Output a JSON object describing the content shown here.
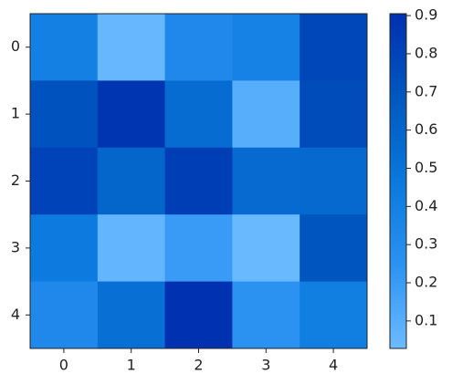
{
  "chart_data": {
    "type": "heatmap",
    "x_categories": [
      "0",
      "1",
      "2",
      "3",
      "4"
    ],
    "y_categories": [
      "0",
      "1",
      "2",
      "3",
      "4"
    ],
    "values": [
      [
        0.4,
        0.05,
        0.33,
        0.38,
        0.78
      ],
      [
        0.72,
        0.88,
        0.55,
        0.1,
        0.75
      ],
      [
        0.8,
        0.6,
        0.83,
        0.56,
        0.57
      ],
      [
        0.45,
        0.06,
        0.2,
        0.04,
        0.7
      ],
      [
        0.33,
        0.52,
        0.9,
        0.25,
        0.42
      ]
    ],
    "colormap": [
      "#6dbbff",
      "#2b92f2",
      "#0a78dc",
      "#0058c0",
      "#0030b0"
    ],
    "vlim": [
      0.028,
      0.905
    ],
    "colorbar_ticks": [
      0.1,
      0.2,
      0.3,
      0.4,
      0.5,
      0.6,
      0.7,
      0.8,
      0.9
    ]
  }
}
